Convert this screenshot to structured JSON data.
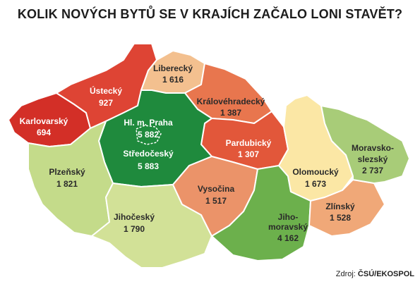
{
  "title": "KOLIK NOVÝCH BYTŮ SE V KRAJÍCH ZAČALO LONI STAVĚT?",
  "source_prefix": "Zdroj: ",
  "source_name": "ČSÚ/EKOSPOL",
  "colors": {
    "dark_red": "#d32f27",
    "red": "#e04d34",
    "orange_red": "#e8764e",
    "salmon": "#eb9369",
    "peach": "#f3c08f",
    "pale_yellow": "#fbe7a5",
    "light_green": "#d5e49a",
    "green_mid": "#97c36a",
    "green": "#6cb04c",
    "dark_green": "#1f8a3d"
  },
  "regions": [
    {
      "id": "karlovarsky",
      "name": "Karlovarský",
      "value": "694",
      "color": "#d32f27"
    },
    {
      "id": "ustecky",
      "name": "Ústecký",
      "value": "927",
      "color": "#de4434"
    },
    {
      "id": "liberecky",
      "name": "Liberecký",
      "value": "1 616",
      "color": "#f3c08f"
    },
    {
      "id": "kralovehradecky",
      "name": "Královéhradecký",
      "value": "1 387",
      "color": "#e8764e"
    },
    {
      "id": "pardubicky",
      "name": "Pardubický",
      "value": "1 307",
      "color": "#e2573a"
    },
    {
      "id": "praha",
      "name": "Hl. m. Praha",
      "value": "5 882",
      "color": "#1f8a3d"
    },
    {
      "id": "stredocesky",
      "name": "Středočeský",
      "value": "5 883",
      "color": "#1f8a3d"
    },
    {
      "id": "plzensky",
      "name": "Plzeňský",
      "value": "1 821",
      "color": "#c4db8a"
    },
    {
      "id": "jihocesky",
      "name": "Jihočeský",
      "value": "1 790",
      "color": "#d2e197"
    },
    {
      "id": "vysocina",
      "name": "Vysočina",
      "value": "1 517",
      "color": "#eb9369"
    },
    {
      "id": "jihomoravsky",
      "name": "Jiho-",
      "name2": "moravský",
      "value": "4 162",
      "color": "#6cb04c"
    },
    {
      "id": "olomoucky",
      "name": "Olomoucký",
      "value": "1 673",
      "color": "#fbe7a5"
    },
    {
      "id": "zlinsky",
      "name": "Zlínský",
      "value": "1 528",
      "color": "#f0a878"
    },
    {
      "id": "moravskoslezsky",
      "name": "Moravsko-",
      "name2": "slezský",
      "value": "2 737",
      "color": "#a8cc78"
    }
  ]
}
